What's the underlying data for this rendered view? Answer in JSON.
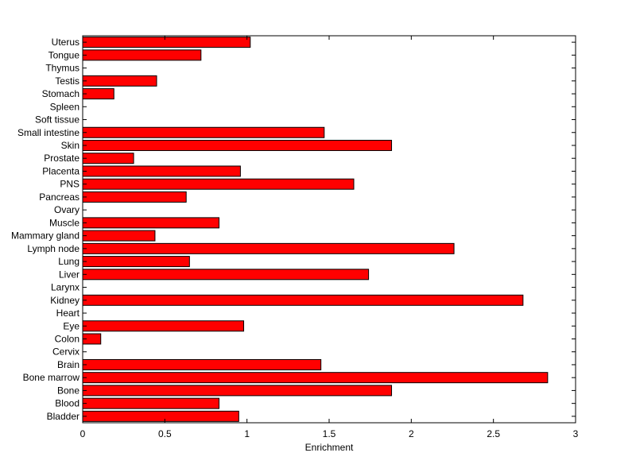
{
  "chart_data": {
    "type": "bar",
    "orientation": "horizontal",
    "categories": [
      "Bladder",
      "Blood",
      "Bone",
      "Bone marrow",
      "Brain",
      "Cervix",
      "Colon",
      "Eye",
      "Heart",
      "Kidney",
      "Larynx",
      "Liver",
      "Lung",
      "Lymph node",
      "Mammary gland",
      "Muscle",
      "Ovary",
      "Pancreas",
      "PNS",
      "Placenta",
      "Prostate",
      "Skin",
      "Small intestine",
      "Soft tissue",
      "Spleen",
      "Stomach",
      "Testis",
      "Thymus",
      "Tongue",
      "Uterus"
    ],
    "values": [
      0.95,
      0.83,
      1.88,
      2.83,
      1.45,
      0,
      0.11,
      0.98,
      0,
      2.68,
      0,
      1.74,
      0.65,
      2.26,
      0.44,
      0.83,
      0,
      0.63,
      1.65,
      0.96,
      0.31,
      1.88,
      1.47,
      0,
      0,
      0.19,
      0.45,
      0,
      0.72,
      1.02
    ],
    "xlabel": "Enrichment",
    "ylabel": "",
    "title": "",
    "xlim": [
      0,
      3
    ],
    "xticks": [
      0,
      0.5,
      1,
      1.5,
      2,
      2.5,
      3
    ],
    "xtick_labels": [
      "0",
      "0.5",
      "1",
      "1.5",
      "2",
      "2.5",
      "3"
    ],
    "bar_color": "#ff0000",
    "grid": false,
    "legend": "none"
  }
}
